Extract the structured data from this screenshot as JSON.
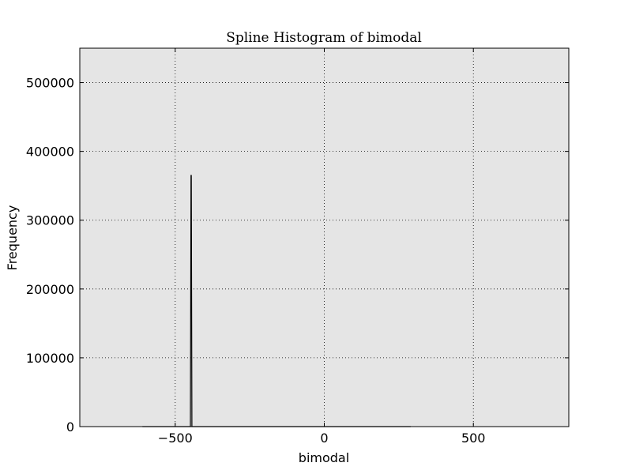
{
  "chart_data": {
    "type": "line",
    "title": "Spline Histogram of bimodal",
    "xlabel": "bimodal",
    "ylabel": "Frequency",
    "xlim": [
      -820,
      820
    ],
    "ylim": [
      0,
      550000
    ],
    "xticks": [
      -500,
      0,
      500
    ],
    "xtick_labels": [
      "−500",
      "0",
      "500"
    ],
    "yticks": [
      0,
      100000,
      200000,
      300000,
      400000,
      500000
    ],
    "ytick_labels": [
      "0",
      "100000",
      "200000",
      "300000",
      "400000",
      "500000"
    ],
    "grid": true,
    "background": "#e5e5e5",
    "line_color": "#000000",
    "series": [
      {
        "x": [
          -610,
          -450,
          -449,
          -447,
          -446,
          -444,
          -300,
          0,
          290
        ],
        "y": [
          0,
          0,
          0,
          365000,
          365000,
          0,
          0,
          0,
          0
        ]
      }
    ]
  }
}
